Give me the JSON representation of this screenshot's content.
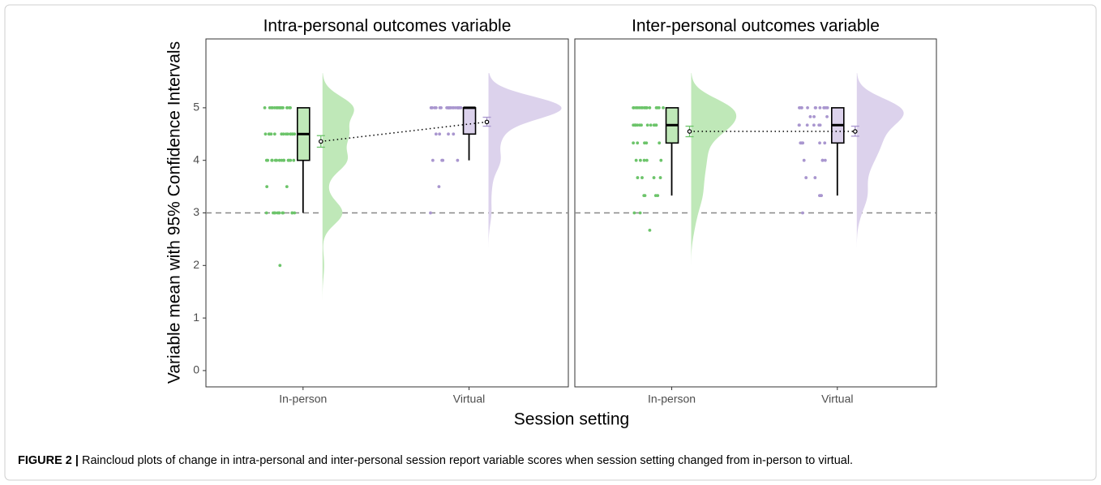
{
  "y_label": "Variable mean with 95% Confidence Intervals",
  "x_label": "Session setting",
  "caption": {
    "label": "FIGURE 2 |",
    "text": "Raincloud plots of change in intra-personal and inter-personal session report variable scores when session setting changed from in-person to virtual."
  },
  "chart_data": [
    {
      "type": "raincloud",
      "title": "Intra-personal outcomes variable",
      "categories": [
        "In-person",
        "Virtual"
      ],
      "ylim": [
        -0.31,
        6.31
      ],
      "yticks": [
        0,
        1,
        2,
        3,
        4,
        5
      ],
      "reference_line": 3,
      "groups": [
        {
          "color": "#6cc46a",
          "cloud_color": "#bfe8b8",
          "points": [
            5,
            5,
            5,
            5,
            5,
            5,
            5,
            5,
            5,
            5,
            5,
            5,
            5,
            5,
            5,
            5,
            5,
            5,
            4.5,
            4.5,
            4.5,
            4.5,
            4.5,
            4.5,
            4.5,
            4.5,
            4.5,
            4.5,
            4.5,
            4.5,
            4.5,
            4.5,
            4,
            4,
            4,
            4,
            4,
            4,
            4,
            4,
            4,
            4,
            4,
            4,
            4,
            4,
            3.5,
            3.5,
            3,
            3,
            3,
            3,
            3,
            3,
            3,
            3,
            3,
            3,
            3,
            3,
            2
          ],
          "box": {
            "min": 3,
            "q1": 4,
            "median": 4.5,
            "q3": 5,
            "max": 5
          },
          "mean": 4.36,
          "ci": [
            4.25,
            4.47
          ]
        },
        {
          "color": "#a996cf",
          "cloud_color": "#dcd2ec",
          "points": [
            5,
            5,
            5,
            5,
            5,
            5,
            5,
            5,
            5,
            5,
            5,
            5,
            5,
            5,
            5,
            5,
            5,
            5,
            5,
            5,
            5,
            5,
            5,
            5,
            5,
            5,
            4.5,
            4.5,
            4.5,
            4.5,
            4,
            4,
            4,
            4,
            3.5,
            3
          ],
          "box": {
            "min": 4,
            "q1": 4.5,
            "median": 5,
            "q3": 5,
            "max": 5
          },
          "mean": 4.73,
          "ci": [
            4.65,
            4.82
          ]
        }
      ]
    },
    {
      "type": "raincloud",
      "title": "Inter-personal outcomes variable",
      "categories": [
        "In-person",
        "Virtual"
      ],
      "ylim": [
        -0.31,
        6.31
      ],
      "reference_line": 3,
      "groups": [
        {
          "color": "#6cc46a",
          "cloud_color": "#bfe8b8",
          "points": [
            5,
            5,
            5,
            5,
            5,
            5,
            5,
            5,
            5,
            5,
            5,
            5,
            5,
            5,
            5,
            5,
            4.67,
            4.67,
            4.67,
            4.67,
            4.67,
            4.67,
            4.67,
            4.67,
            4.67,
            4.67,
            4.67,
            4.67,
            4.67,
            4.67,
            4.33,
            4.33,
            4.33,
            4.33,
            4.33,
            4,
            4,
            4,
            4,
            4,
            3.67,
            3.67,
            3.67,
            3.67,
            3.33,
            3.33,
            3.33,
            3.33,
            3,
            3,
            2.67
          ],
          "box": {
            "min": 3.33,
            "q1": 4.33,
            "median": 4.67,
            "q3": 5,
            "max": 5
          },
          "mean": 4.55,
          "ci": [
            4.45,
            4.65
          ]
        },
        {
          "color": "#a996cf",
          "cloud_color": "#dcd2ec",
          "points": [
            5,
            5,
            5,
            5,
            5,
            5,
            5,
            5,
            5,
            5,
            5,
            5,
            4.83,
            4.83,
            4.83,
            4.67,
            4.67,
            4.67,
            4.67,
            4.67,
            4.67,
            4.33,
            4.33,
            4.33,
            4.33,
            4.33,
            4.33,
            4,
            4,
            4,
            4,
            3.67,
            3.67,
            3.33,
            3.33,
            3.33,
            3
          ],
          "box": {
            "min": 3.33,
            "q1": 4.33,
            "median": 4.67,
            "q3": 5,
            "max": 5
          },
          "mean": 4.55,
          "ci": [
            4.46,
            4.65
          ]
        }
      ]
    }
  ]
}
